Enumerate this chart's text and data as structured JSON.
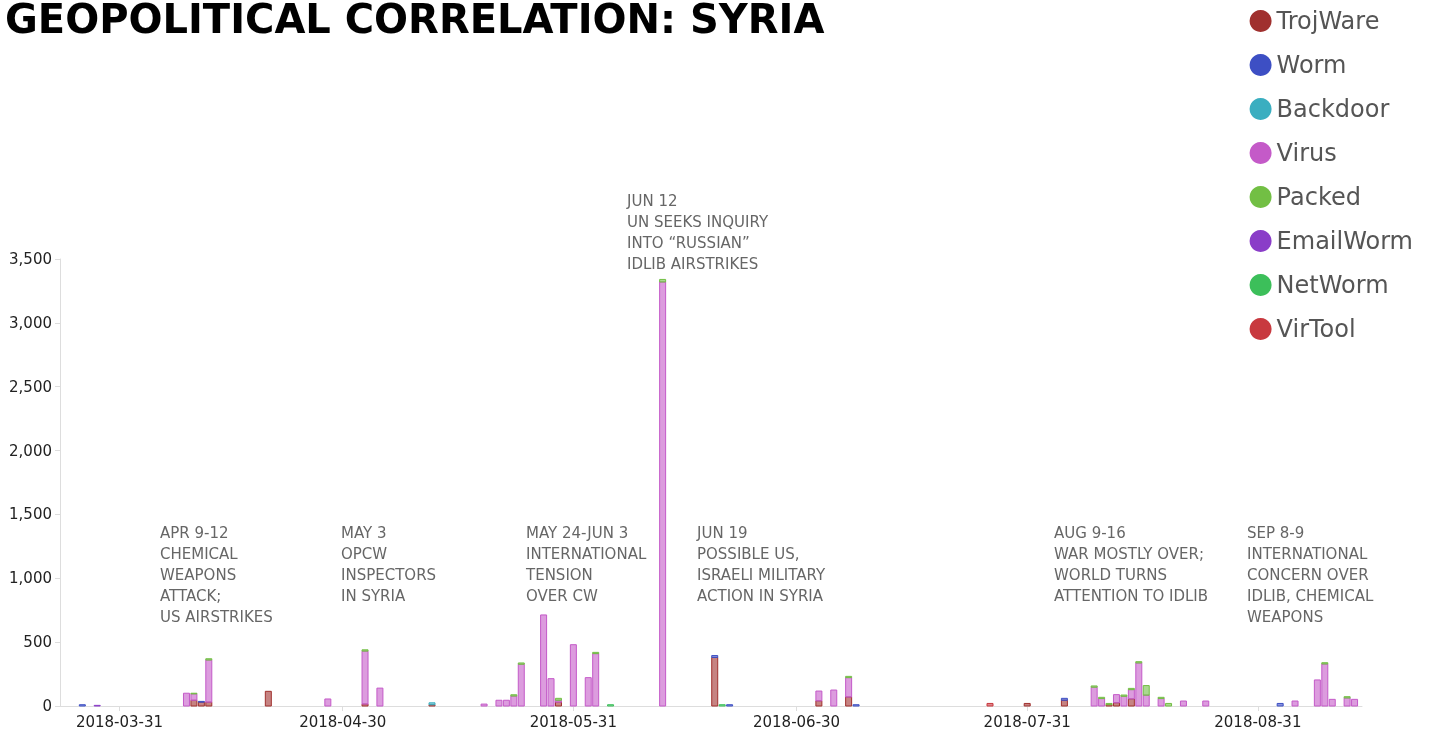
{
  "chart_data": {
    "type": "bar",
    "title": "GEOPOLITICAL CORRELATION: SYRIA",
    "stacked": true,
    "x": [
      "2018-03-26",
      "2018-03-28",
      "2018-04-09",
      "2018-04-10",
      "2018-04-11",
      "2018-04-12",
      "2018-04-20",
      "2018-04-28",
      "2018-05-03",
      "2018-05-05",
      "2018-05-12",
      "2018-05-19",
      "2018-05-21",
      "2018-05-22",
      "2018-05-23",
      "2018-05-24",
      "2018-05-27",
      "2018-05-28",
      "2018-05-29",
      "2018-05-31",
      "2018-06-02",
      "2018-06-03",
      "2018-06-05",
      "2018-06-12",
      "2018-06-19",
      "2018-06-20",
      "2018-06-21",
      "2018-07-03",
      "2018-07-05",
      "2018-07-07",
      "2018-07-08",
      "2018-07-26",
      "2018-07-31",
      "2018-08-05",
      "2018-08-09",
      "2018-08-10",
      "2018-08-11",
      "2018-08-12",
      "2018-08-13",
      "2018-08-14",
      "2018-08-15",
      "2018-08-16",
      "2018-08-18",
      "2018-08-19",
      "2018-08-21",
      "2018-08-24",
      "2018-09-03",
      "2018-09-05",
      "2018-09-08",
      "2018-09-09",
      "2018-09-10",
      "2018-09-12",
      "2018-09-13"
    ],
    "series": [
      {
        "name": "TrojWare",
        "color": "#a0302e",
        "values": [
          null,
          null,
          null,
          45,
          30,
          30,
          115,
          null,
          15,
          null,
          10,
          null,
          null,
          null,
          null,
          null,
          null,
          null,
          30,
          null,
          null,
          null,
          null,
          null,
          380,
          null,
          null,
          40,
          null,
          70,
          null,
          null,
          20,
          45,
          null,
          null,
          10,
          25,
          null,
          55,
          null,
          null,
          null,
          null,
          null,
          null,
          null,
          null,
          null,
          null,
          null,
          null,
          null
        ]
      },
      {
        "name": "Worm",
        "color": "#3d4fc4",
        "values": [
          10,
          null,
          null,
          null,
          6,
          null,
          null,
          null,
          null,
          null,
          null,
          null,
          null,
          null,
          null,
          null,
          null,
          null,
          null,
          null,
          null,
          null,
          null,
          null,
          15,
          null,
          10,
          null,
          null,
          null,
          10,
          null,
          null,
          15,
          null,
          null,
          null,
          null,
          null,
          null,
          null,
          null,
          null,
          null,
          null,
          null,
          20,
          null,
          null,
          null,
          null,
          null,
          null
        ]
      },
      {
        "name": "Backdoor",
        "color": "#3aaec0",
        "values": [
          null,
          null,
          null,
          null,
          null,
          null,
          null,
          null,
          null,
          null,
          15,
          null,
          null,
          null,
          null,
          null,
          null,
          null,
          null,
          null,
          null,
          null,
          null,
          null,
          null,
          null,
          null,
          null,
          null,
          null,
          null,
          null,
          null,
          null,
          null,
          null,
          null,
          null,
          null,
          null,
          null,
          null,
          null,
          null,
          null,
          null,
          null,
          null,
          null,
          null,
          null,
          null,
          null
        ]
      },
      {
        "name": "Virus",
        "color": "#c45ac8",
        "values": [
          null,
          null,
          100,
          50,
          null,
          330,
          null,
          55,
          415,
          140,
          null,
          15,
          45,
          45,
          78,
          327,
          713,
          214,
          15,
          480,
          222,
          410,
          null,
          3320,
          null,
          null,
          null,
          77,
          125,
          152,
          null,
          null,
          null,
          null,
          147,
          58,
          null,
          64,
          76,
          73,
          337,
          85,
          58,
          null,
          39,
          39,
          null,
          39,
          204,
          329,
          52,
          63,
          52
        ]
      },
      {
        "name": "Packed",
        "color": "#72bf44",
        "values": [
          null,
          null,
          null,
          5,
          null,
          10,
          null,
          null,
          10,
          null,
          null,
          null,
          null,
          null,
          10,
          10,
          null,
          null,
          15,
          null,
          null,
          10,
          null,
          20,
          null,
          null,
          null,
          null,
          null,
          10,
          null,
          null,
          null,
          null,
          10,
          10,
          10,
          null,
          10,
          10,
          10,
          75,
          10,
          20,
          null,
          null,
          null,
          null,
          null,
          10,
          null,
          10,
          null
        ]
      },
      {
        "name": "EmailWorm",
        "color": "#8a3dc8",
        "values": [
          null,
          5,
          null,
          null,
          null,
          null,
          null,
          null,
          null,
          null,
          null,
          null,
          null,
          null,
          null,
          null,
          null,
          null,
          null,
          null,
          null,
          null,
          null,
          null,
          null,
          null,
          null,
          null,
          null,
          null,
          null,
          null,
          null,
          null,
          null,
          null,
          null,
          null,
          null,
          null,
          null,
          null,
          null,
          null,
          null,
          null,
          null,
          null,
          null,
          null,
          null,
          null,
          null
        ]
      },
      {
        "name": "NetWorm",
        "color": "#3cbf5a",
        "values": [
          null,
          null,
          null,
          null,
          null,
          null,
          null,
          null,
          null,
          null,
          null,
          null,
          null,
          null,
          null,
          null,
          null,
          null,
          null,
          null,
          null,
          null,
          10,
          null,
          null,
          10,
          null,
          null,
          null,
          null,
          null,
          null,
          null,
          null,
          null,
          null,
          null,
          null,
          null,
          null,
          null,
          null,
          null,
          null,
          null,
          null,
          null,
          null,
          null,
          null,
          null,
          null,
          null
        ]
      },
      {
        "name": "VirTool",
        "color": "#c8393f",
        "values": [
          null,
          null,
          null,
          null,
          null,
          null,
          null,
          null,
          null,
          null,
          null,
          null,
          null,
          null,
          null,
          null,
          null,
          null,
          null,
          null,
          null,
          null,
          null,
          null,
          null,
          null,
          null,
          null,
          null,
          null,
          null,
          20,
          null,
          null,
          null,
          null,
          null,
          null,
          null,
          null,
          null,
          null,
          null,
          null,
          null,
          null,
          null,
          null,
          null,
          null,
          null,
          null,
          null
        ]
      }
    ],
    "xlim": [
      "2018-03-23",
      "2018-09-14"
    ],
    "xticks": [
      "2018-03-31",
      "2018-04-30",
      "2018-05-31",
      "2018-06-30",
      "2018-07-31",
      "2018-08-31"
    ],
    "ylim": [
      0,
      3500
    ],
    "yticks": [
      0,
      500,
      {
        "value": 1000,
        "label": "1,000"
      },
      {
        "value": 1500,
        "label": "1,500"
      },
      {
        "value": 2000,
        "label": "2,000"
      },
      {
        "value": 2500,
        "label": "2,500"
      },
      {
        "value": 3000,
        "label": "3,000"
      },
      {
        "value": 3500,
        "label": "3,500"
      }
    ],
    "grid": false,
    "legend": "top right",
    "annotations": [
      "APR 9-12\nCHEMICAL\nWEAPONS\nATTACK;\nUS AIRSTRIKES",
      "MAY 3\nOPCW\nINSPECTORS\nIN SYRIA",
      "MAY 24-JUN 3\nINTERNATIONAL\nTENSION\nOVER CW",
      "JUN 12\nUN SEEKS INQUIRY\nINTO “RUSSIAN”\nIDLIB AIRSTRIKES",
      "JUN 19\nPOSSIBLE US,\nISRAELI MILITARY\nACTION IN SYRIA",
      "AUG 9-16\nWAR MOSTLY OVER;\nWORLD TURNS\nATTENTION TO IDLIB",
      "SEP 8-9\nINTERNATIONAL\nCONCERN OVER\nIDLIB, CHEMICAL\nWEAPONS"
    ]
  }
}
